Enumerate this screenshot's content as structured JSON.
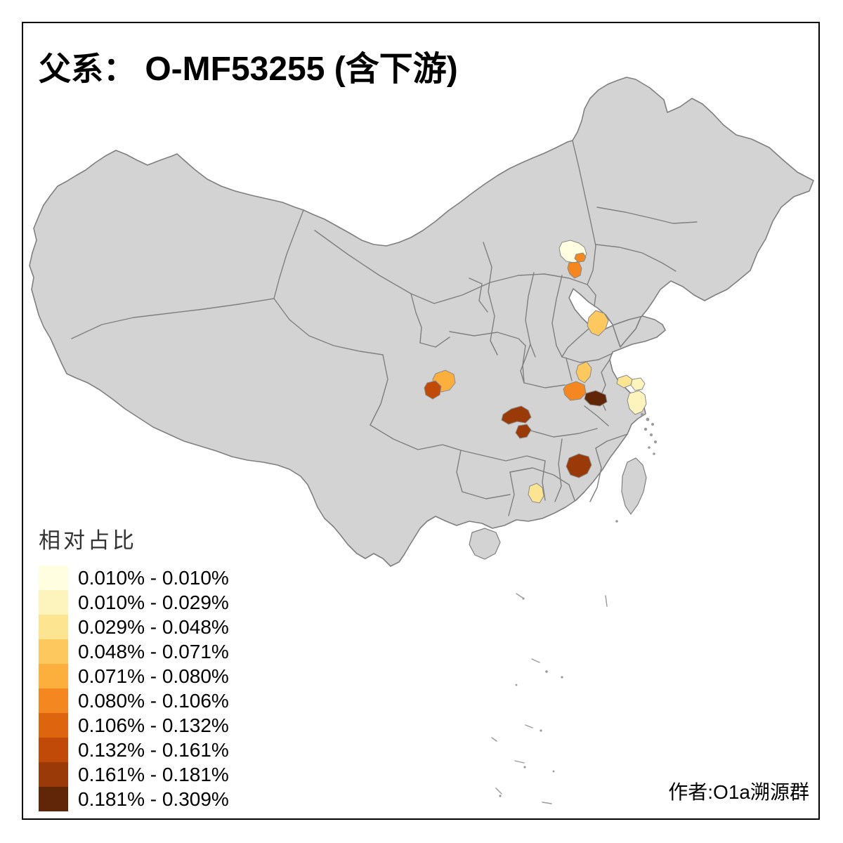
{
  "title": {
    "prefix": "父系：",
    "main": " O-MF53255 (含下游)"
  },
  "legend": {
    "title": "相对占比",
    "classes": [
      {
        "label": "0.010% - 0.010%",
        "color": "#FFFEE0"
      },
      {
        "label": "0.010% - 0.029%",
        "color": "#FCF4BC"
      },
      {
        "label": "0.029% - 0.048%",
        "color": "#FDE491"
      },
      {
        "label": "0.048% - 0.071%",
        "color": "#FDC95F"
      },
      {
        "label": "0.071% - 0.080%",
        "color": "#FDAF3D"
      },
      {
        "label": "0.080% - 0.106%",
        "color": "#F4871F"
      },
      {
        "label": "0.106% - 0.132%",
        "color": "#DE650E"
      },
      {
        "label": "0.132% - 0.161%",
        "color": "#C14A08"
      },
      {
        "label": "0.161% - 0.181%",
        "color": "#993A08"
      },
      {
        "label": "0.181% - 0.309%",
        "color": "#612507"
      }
    ]
  },
  "map": {
    "land_color": "#D3D3D3",
    "border_color": "#7F7F7F",
    "background_color": "#FFFFFF",
    "frame_color": "#000000",
    "highlights": [
      {
        "name": "beijing-municipality",
        "class_index": 0
      },
      {
        "name": "beijing-urban-pocket",
        "class_index": 5
      },
      {
        "name": "hebei-langfang-area",
        "class_index": 5
      },
      {
        "name": "shandong-central",
        "class_index": 3
      },
      {
        "name": "henan-south",
        "class_index": 3
      },
      {
        "name": "sichuan-chengdu",
        "class_index": 4
      },
      {
        "name": "sichuan-southwest",
        "class_index": 7
      },
      {
        "name": "hubei-wuhan",
        "class_index": 5
      },
      {
        "name": "hubei-east",
        "class_index": 9
      },
      {
        "name": "chongqing-main",
        "class_index": 8
      },
      {
        "name": "chongqing-south",
        "class_index": 8
      },
      {
        "name": "jiangsu-south",
        "class_index": 2
      },
      {
        "name": "jiangsu-coastal",
        "class_index": 1
      },
      {
        "name": "zhejiang-north",
        "class_index": 1
      },
      {
        "name": "guangdong-northeast",
        "class_index": 2
      },
      {
        "name": "fujian-west",
        "class_index": 8
      }
    ]
  },
  "attribution": "作者:O1a溯源群"
}
